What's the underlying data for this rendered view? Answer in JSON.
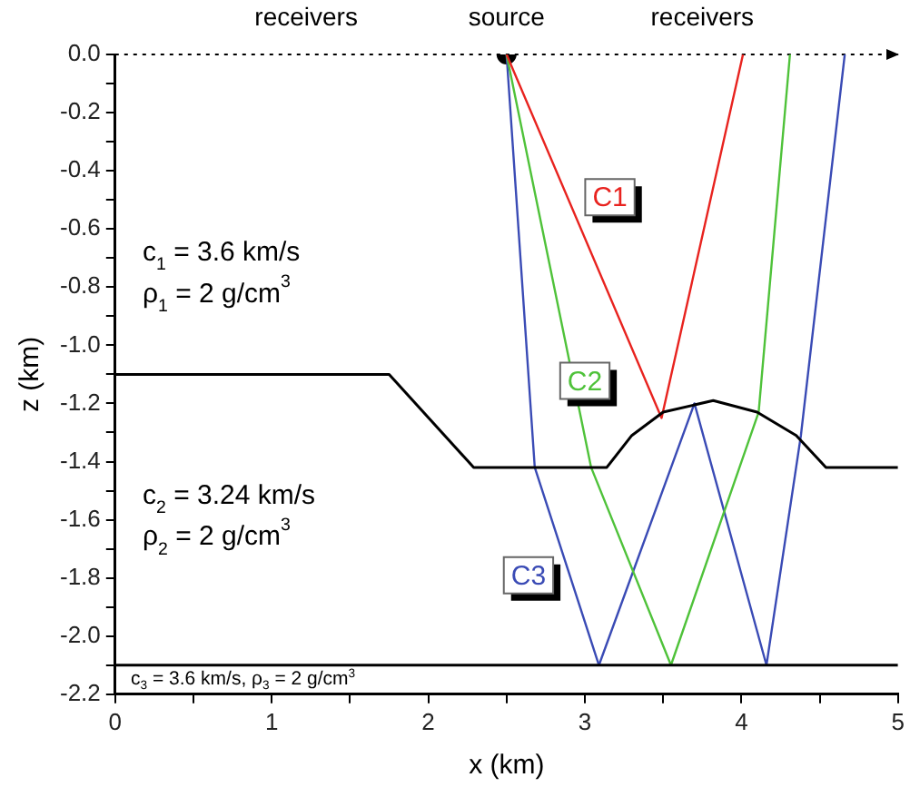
{
  "chart_data": {
    "type": "line",
    "xlabel": "x (km)",
    "ylabel": "z (km)",
    "xlim": [
      0,
      5
    ],
    "xticks": [
      0,
      {
        "value": 0.5,
        "label": null
      },
      1,
      {
        "value": 1.5,
        "label": null
      },
      2,
      {
        "value": 2.5,
        "label": null
      },
      3,
      {
        "value": 3.5,
        "label": null
      },
      4,
      {
        "value": 4.5,
        "label": null
      },
      5
    ],
    "ylim": [
      -2.2,
      0
    ],
    "yticks": [
      {
        "value": 0,
        "label": "0.0"
      },
      {
        "value": -0.1,
        "label": null
      },
      {
        "value": -0.2,
        "label": "-0.2"
      },
      {
        "value": -0.3,
        "label": null
      },
      {
        "value": -0.4,
        "label": "-0.4"
      },
      {
        "value": -0.5,
        "label": null
      },
      {
        "value": -0.6,
        "label": "-0.6"
      },
      {
        "value": -0.7,
        "label": null
      },
      {
        "value": -0.8,
        "label": "-0.8"
      },
      {
        "value": -0.9,
        "label": null
      },
      {
        "value": -1,
        "label": "-1.0"
      },
      {
        "value": -1.1,
        "label": null
      },
      {
        "value": -1.2,
        "label": "-1.2"
      },
      {
        "value": -1.3,
        "label": null
      },
      {
        "value": -1.4,
        "label": "-1.4"
      },
      {
        "value": -1.5,
        "label": null
      },
      {
        "value": -1.6,
        "label": "-1.6"
      },
      {
        "value": -1.7,
        "label": null
      },
      {
        "value": -1.8,
        "label": "-1.8"
      },
      {
        "value": -1.9,
        "label": null
      },
      {
        "value": -2,
        "label": "-2.0"
      },
      {
        "value": -2.1,
        "label": null
      },
      {
        "value": -2.2,
        "label": "-2.2"
      }
    ],
    "grid": false,
    "legend": false,
    "ref_lines": [
      {
        "axis": "y",
        "value": 0,
        "line_style": "dotted",
        "color": "#000000"
      }
    ],
    "annotations": [
      {
        "text": "receivers",
        "x": 1.22,
        "y": 0
      },
      {
        "text": "source",
        "x": 2.5,
        "y": 0
      },
      {
        "text": "receivers",
        "x": 3.75,
        "y": 0
      },
      "c$_{1}$ = 3.6 km/s",
      "ρ$_{1}$ = 2 g/cm$^{3}$",
      "c$_{2}$ = 3.24 km/s",
      "ρ$_{2}$ = 2 g/cm$^{3}$",
      "c$_{3}$ = 3.6 km/s, ρ$_{3}$ = 2 g/cm$^{3}$"
    ],
    "series": [
      {
        "type": "line",
        "color": "#000000",
        "x": [
          0,
          1.75,
          2.29,
          3.14,
          3.3,
          3.5,
          3.82,
          4.1,
          4.35,
          4.54,
          5
        ],
        "values": [
          -1.1,
          -1.1,
          -1.42,
          -1.42,
          -1.31,
          -1.23,
          -1.19,
          -1.23,
          -1.31,
          -1.42,
          -1.42
        ]
      },
      {
        "type": "line",
        "color": "#000000",
        "x": [
          0,
          5
        ],
        "values": [
          -2.1,
          -2.1
        ]
      },
      {
        "type": "line",
        "name": "C1",
        "color": "#e8231f",
        "x": [
          2.5,
          3.49,
          4.01
        ],
        "values": [
          0,
          -1.25,
          0
        ]
      },
      {
        "type": "line",
        "name": "C2",
        "color": "#4fc23a",
        "x": [
          2.5,
          3.04,
          3.55,
          4.11,
          4.31
        ],
        "values": [
          0,
          -1.42,
          -2.1,
          -1.23,
          0
        ]
      },
      {
        "type": "line",
        "name": "C3",
        "color": "#3a4bb5",
        "x": [
          2.5,
          2.68,
          3.09,
          3.7,
          4.16,
          4.38,
          4.66
        ],
        "values": [
          0,
          -1.42,
          -2.1,
          -1.2,
          -2.1,
          -1.31,
          0
        ]
      },
      {
        "type": "scatter",
        "color": "#000000",
        "x": [
          2.5
        ],
        "values": [
          0
        ]
      }
    ]
  }
}
